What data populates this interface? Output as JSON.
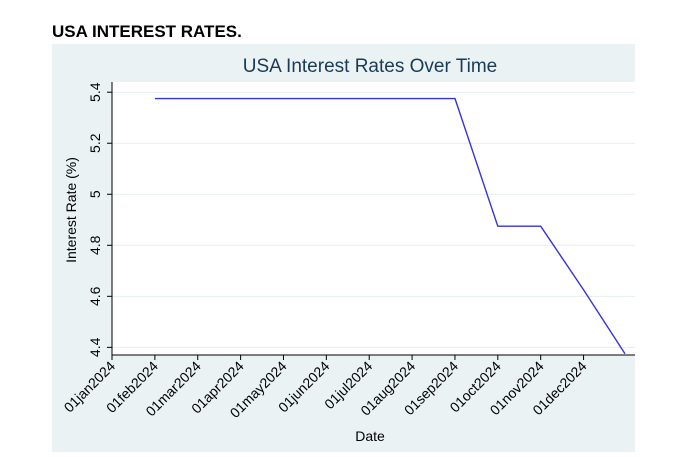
{
  "page": {
    "heading": "USA INTEREST RATES."
  },
  "chart_data": {
    "type": "line",
    "title": "USA Interest Rates Over Time",
    "xlabel": "Date",
    "ylabel": "Interest Rate (%)",
    "x_ticks": [
      "01jan2024",
      "01feb2024",
      "01mar2024",
      "01apr2024",
      "01may2024",
      "01jun2024",
      "01jul2024",
      "01aug2024",
      "01sep2024",
      "01oct2024",
      "01nov2024",
      "01dec2024"
    ],
    "y_ticks": [
      4.4,
      4.6,
      4.8,
      5,
      5.2,
      5.4
    ],
    "y_tick_labels": [
      "4.4",
      "4.6",
      "4.8",
      "5",
      "5.2",
      "5.4"
    ],
    "ylim": [
      4.37,
      5.44
    ],
    "xlim_months": [
      0,
      12.2
    ],
    "grid": true,
    "series": [
      {
        "name": "Interest Rate",
        "color": "#3333dd",
        "points": [
          {
            "date": "01feb2024",
            "value": 5.375
          },
          {
            "date": "01sep2024",
            "value": 5.375
          },
          {
            "date": "01oct2024",
            "value": 4.875
          },
          {
            "date": "01nov2024",
            "value": 4.875
          },
          {
            "date": "01dec2024",
            "value": 4.625
          },
          {
            "date": "31dec2024",
            "value": 4.375
          }
        ]
      }
    ],
    "colors": {
      "plot_bg": "#eaf2f3",
      "panel_bg": "#ffffff",
      "grid": "#e6eeef",
      "axis": "#000000",
      "title": "#1a3b55"
    }
  }
}
